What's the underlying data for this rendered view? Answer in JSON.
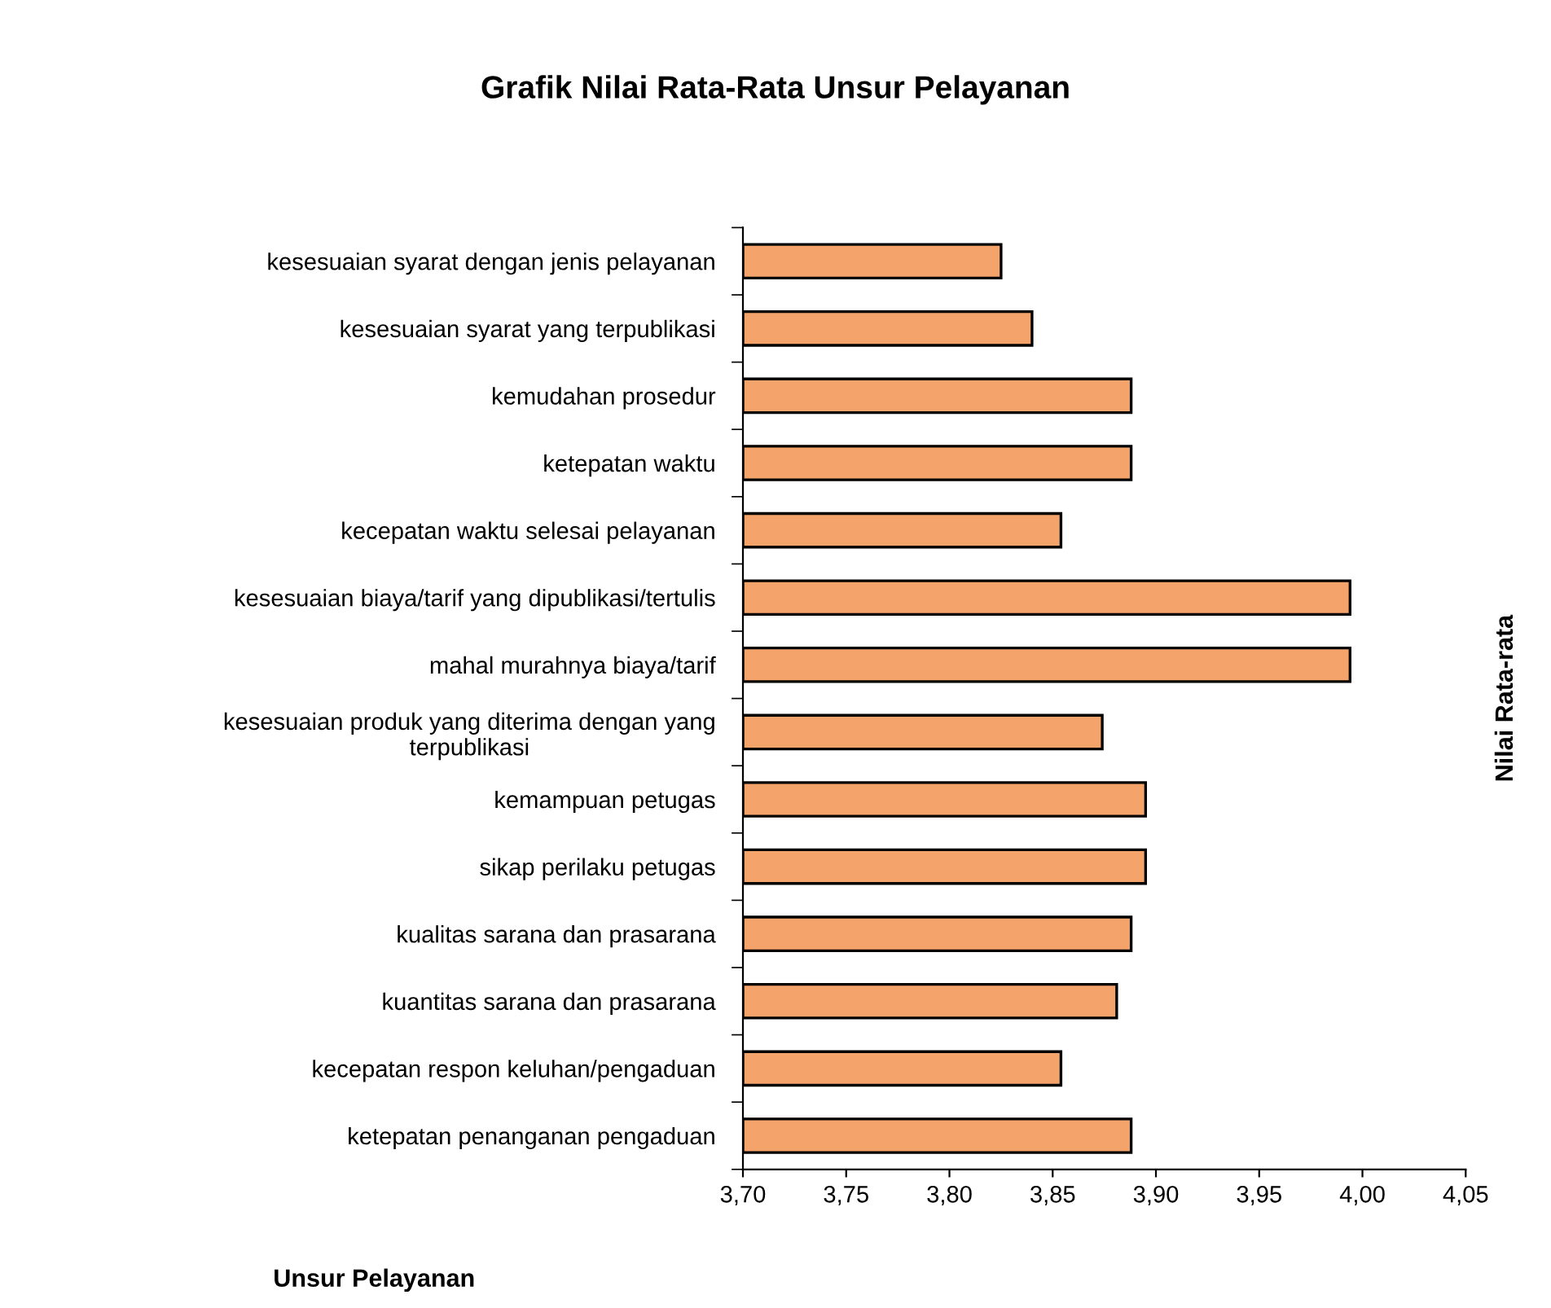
{
  "chart_data": {
    "type": "bar",
    "orientation": "horizontal",
    "title": "Grafik Nilai Rata-Rata Unsur Pelayanan",
    "xlabel": "Unsur Pelayanan",
    "ylabel": "Nilai Rata-rata",
    "categories": [
      "kesesuaian syarat dengan jenis pelayanan",
      "kesesuaian syarat yang terpublikasi",
      "kemudahan prosedur",
      "ketepatan waktu",
      "kecepatan waktu selesai pelayanan",
      "kesesuaian biaya/tarif yang dipublikasi/tertulis",
      "mahal murahnya biaya/tarif",
      "kesesuaian produk yang diterima dengan yang\nterpublikasi",
      "kemampuan petugas",
      "sikap perilaku petugas",
      "kualitas sarana dan prasarana",
      "kuantitas sarana dan prasarana",
      "kecepatan respon keluhan/pengaduan",
      "ketepatan penanganan pengaduan"
    ],
    "values": [
      3.825,
      3.84,
      3.888,
      3.888,
      3.854,
      3.994,
      3.994,
      3.874,
      3.895,
      3.895,
      3.888,
      3.881,
      3.854,
      3.888
    ],
    "color": "#f4a46a",
    "xlim": [
      3.7,
      4.05
    ],
    "xticks": [
      {
        "value": 3.7,
        "label": "3,70"
      },
      {
        "value": 3.75,
        "label": "3,75"
      },
      {
        "value": 3.8,
        "label": "3,80"
      },
      {
        "value": 3.85,
        "label": "3,85"
      },
      {
        "value": 3.9,
        "label": "3,90"
      },
      {
        "value": 3.95,
        "label": "3,95"
      },
      {
        "value": 4.0,
        "label": "4,00"
      },
      {
        "value": 4.05,
        "label": "4,05"
      }
    ],
    "grid": false,
    "legend": false
  }
}
